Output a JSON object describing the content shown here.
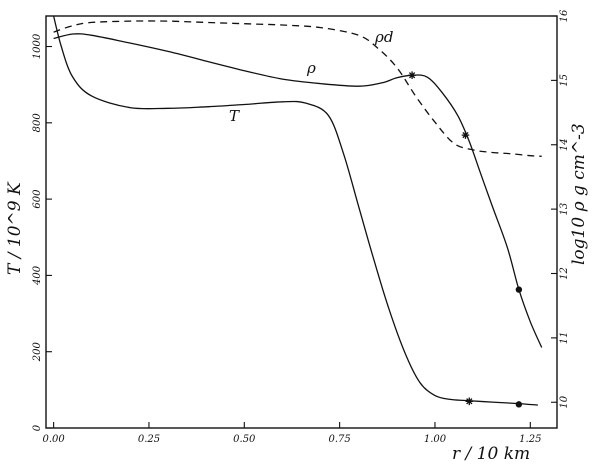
{
  "chart_data": {
    "type": "line",
    "title": "",
    "xlabel": "r / 10 km",
    "ylabel_left": "T / 10^9 K",
    "ylabel_right": "log10 ρ g cm^-3",
    "xlim": [
      -0.02,
      1.32
    ],
    "ylim_left": [
      0,
      1080
    ],
    "ylim_right": [
      9.6,
      16.0
    ],
    "x_ticks": [
      0.0,
      0.25,
      0.5,
      0.75,
      1.0,
      1.25
    ],
    "x_tick_labels": [
      "0.00",
      "0.25",
      "0.50",
      "0.75",
      "1.00",
      "1.25"
    ],
    "y_left_ticks": [
      0,
      200,
      400,
      600,
      800,
      1000
    ],
    "y_left_tick_labels": [
      "0",
      "200",
      "400",
      "600",
      "800",
      "1000"
    ],
    "y_right_ticks": [
      10,
      11,
      12,
      13,
      14,
      15,
      16
    ],
    "y_right_tick_labels": [
      "10",
      "11",
      "12",
      "13",
      "14",
      "15",
      "16"
    ],
    "grid": false,
    "legend": "none",
    "series": [
      {
        "name": "T",
        "axis": "left",
        "style": "solid",
        "x": [
          0.0,
          0.02,
          0.05,
          0.1,
          0.2,
          0.3,
          0.4,
          0.5,
          0.6,
          0.66,
          0.72,
          0.76,
          0.8,
          0.84,
          0.88,
          0.92,
          0.96,
          1.0,
          1.04,
          1.08,
          1.15,
          1.22,
          1.27
        ],
        "y": [
          1080,
          1000,
          920,
          870,
          840,
          838,
          842,
          848,
          855,
          852,
          820,
          720,
          580,
          440,
          310,
          200,
          120,
          85,
          75,
          72,
          68,
          64,
          60
        ],
        "markers": [
          {
            "shape": "star",
            "x": 1.09,
            "y": 70
          },
          {
            "shape": "dot",
            "x": 1.22,
            "y": 62
          }
        ]
      },
      {
        "name": "ρ",
        "axis": "right",
        "style": "solid",
        "x": [
          0.0,
          0.05,
          0.1,
          0.2,
          0.3,
          0.4,
          0.5,
          0.6,
          0.7,
          0.8,
          0.86,
          0.9,
          0.94,
          0.98,
          1.02,
          1.06,
          1.09,
          1.12,
          1.15,
          1.19,
          1.22,
          1.25,
          1.28
        ],
        "y": [
          15.65,
          15.72,
          15.7,
          15.58,
          15.45,
          15.3,
          15.15,
          15.02,
          14.95,
          14.91,
          14.96,
          15.04,
          15.08,
          15.05,
          14.8,
          14.45,
          14.05,
          13.55,
          13.05,
          12.4,
          11.75,
          11.25,
          10.85
        ],
        "markers": [
          {
            "shape": "star",
            "x": 0.94,
            "y": 15.08
          },
          {
            "shape": "star",
            "x": 1.08,
            "y": 14.15
          },
          {
            "shape": "dot",
            "x": 1.22,
            "y": 11.75
          }
        ]
      },
      {
        "name": "ρd",
        "axis": "right",
        "style": "dashed",
        "x": [
          0.0,
          0.05,
          0.1,
          0.2,
          0.3,
          0.4,
          0.5,
          0.6,
          0.7,
          0.8,
          0.85,
          0.9,
          0.95,
          1.0,
          1.05,
          1.1,
          1.15,
          1.2,
          1.25,
          1.28
        ],
        "y": [
          15.75,
          15.85,
          15.9,
          15.92,
          15.92,
          15.9,
          15.88,
          15.86,
          15.82,
          15.7,
          15.5,
          15.2,
          14.75,
          14.35,
          14.02,
          13.92,
          13.88,
          13.86,
          13.83,
          13.82
        ]
      }
    ]
  }
}
